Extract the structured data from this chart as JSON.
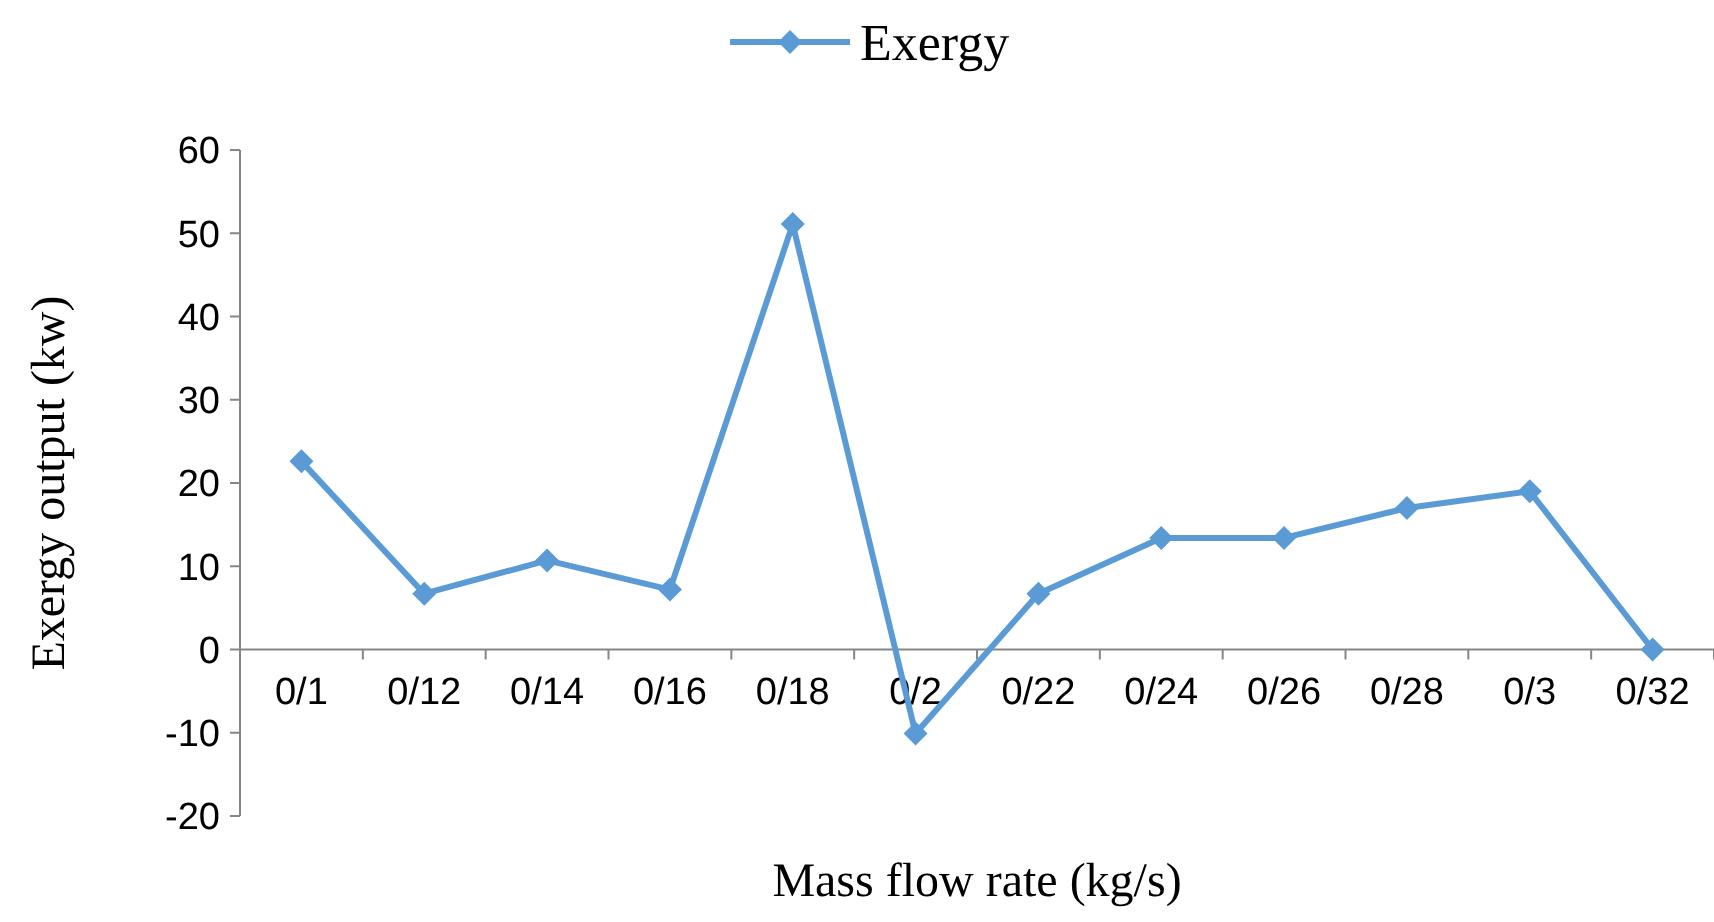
{
  "chart_data": {
    "type": "line",
    "xlabel": "Mass flow rate (kg/s)",
    "ylabel": "Exergy output (kw)",
    "categories": [
      "0/1",
      "0/12",
      "0/14",
      "0/16",
      "0/18",
      "0/2",
      "0/22",
      "0/24",
      "0/26",
      "0/28",
      "0/3",
      "0/32"
    ],
    "series": [
      {
        "name": "Exergy",
        "color": "#5b9bd5",
        "values": [
          22.6,
          6.7,
          10.7,
          7.2,
          51.1,
          -10.1,
          6.7,
          13.4,
          13.4,
          17,
          19,
          0
        ]
      }
    ],
    "ylim": [
      -20,
      60
    ],
    "yticks": [
      -20,
      -10,
      0,
      10,
      20,
      30,
      40,
      50,
      60
    ],
    "grid": false,
    "legend": "top",
    "marker": "diamond",
    "line_style": "solid"
  }
}
